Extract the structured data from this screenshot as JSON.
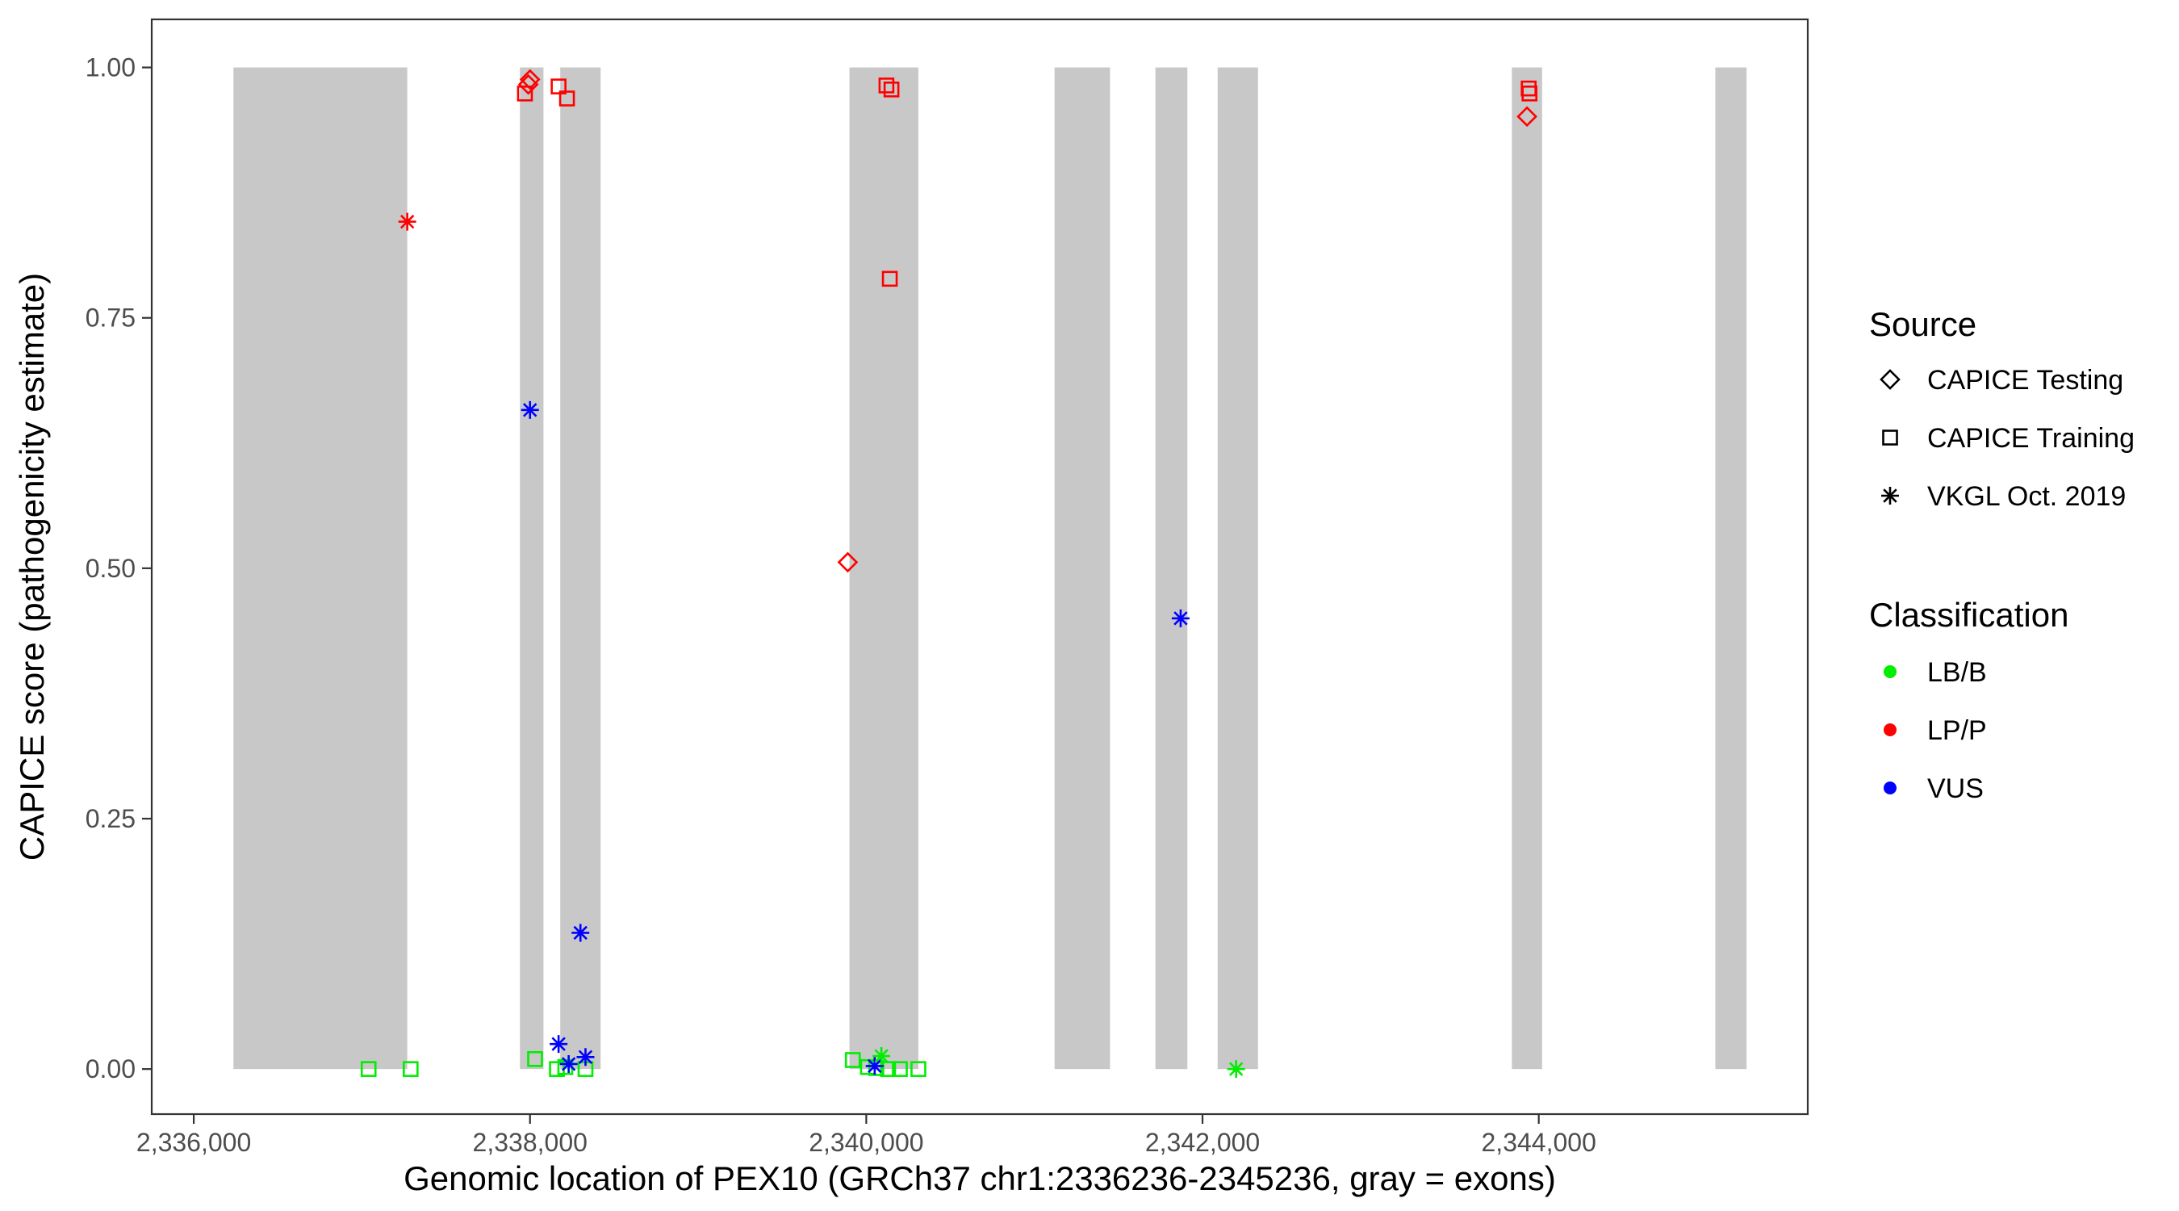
{
  "chart_data": {
    "type": "scatter",
    "xlabel": "Genomic location of PEX10 (GRCh37 chr1:2336236-2345236, gray = exons)",
    "ylabel": "CAPICE score (pathogenicity estimate)",
    "xlim": [
      2335750,
      2345600
    ],
    "ylim": [
      -0.045,
      1.048
    ],
    "x_ticks": [
      2336000,
      2338000,
      2340000,
      2342000,
      2344000
    ],
    "x_tick_labels": [
      "2,336,000",
      "2,338,000",
      "2,340,000",
      "2,342,000",
      "2,344,000"
    ],
    "y_ticks": [
      0,
      0.25,
      0.5,
      0.75,
      1
    ],
    "y_tick_labels": [
      "0.00",
      "0.25",
      "0.50",
      "0.75",
      "1.00"
    ],
    "grid": false,
    "exons": [
      [
        2336236,
        2337270
      ],
      [
        2337940,
        2338080
      ],
      [
        2338180,
        2338420
      ],
      [
        2339900,
        2340310
      ],
      [
        2341120,
        2341450
      ],
      [
        2341720,
        2341910
      ],
      [
        2342090,
        2342330
      ],
      [
        2343840,
        2344020
      ],
      [
        2345050,
        2345236
      ]
    ],
    "legends": [
      {
        "title": "Source",
        "position": "right",
        "entries": [
          {
            "label": "CAPICE Testing",
            "shape": "diamond"
          },
          {
            "label": "CAPICE Training",
            "shape": "square"
          },
          {
            "label": "VKGL Oct. 2019",
            "shape": "asterisk"
          }
        ]
      },
      {
        "title": "Classification",
        "position": "right",
        "entries": [
          {
            "label": "LB/B",
            "color": "#00ee00"
          },
          {
            "label": "LP/P",
            "color": "#ff0000"
          },
          {
            "label": "VUS",
            "color": "#0000ff"
          }
        ]
      }
    ],
    "colors": {
      "LB/B": "#00ee00",
      "LP/P": "#ff0000",
      "VUS": "#0000ff",
      "exon": "#c8c8c8"
    },
    "points": [
      {
        "x": 2338000,
        "y": 0.988,
        "source": "CAPICE Testing",
        "class": "LP/P"
      },
      {
        "x": 2337990,
        "y": 0.983,
        "source": "CAPICE Testing",
        "class": "LP/P"
      },
      {
        "x": 2339890,
        "y": 0.506,
        "source": "CAPICE Testing",
        "class": "LP/P"
      },
      {
        "x": 2343930,
        "y": 0.951,
        "source": "CAPICE Testing",
        "class": "LP/P"
      },
      {
        "x": 2337970,
        "y": 0.974,
        "source": "CAPICE Training",
        "class": "LP/P"
      },
      {
        "x": 2338170,
        "y": 0.981,
        "source": "CAPICE Training",
        "class": "LP/P"
      },
      {
        "x": 2338220,
        "y": 0.969,
        "source": "CAPICE Training",
        "class": "LP/P"
      },
      {
        "x": 2340120,
        "y": 0.982,
        "source": "CAPICE Training",
        "class": "LP/P"
      },
      {
        "x": 2340150,
        "y": 0.978,
        "source": "CAPICE Training",
        "class": "LP/P"
      },
      {
        "x": 2340140,
        "y": 0.789,
        "source": "CAPICE Training",
        "class": "LP/P"
      },
      {
        "x": 2343940,
        "y": 0.979,
        "source": "CAPICE Training",
        "class": "LP/P"
      },
      {
        "x": 2343945,
        "y": 0.974,
        "source": "CAPICE Training",
        "class": "LP/P"
      },
      {
        "x": 2337040,
        "y": 0.0,
        "source": "CAPICE Training",
        "class": "LB/B"
      },
      {
        "x": 2337290,
        "y": 0.0,
        "source": "CAPICE Training",
        "class": "LB/B"
      },
      {
        "x": 2338030,
        "y": 0.01,
        "source": "CAPICE Training",
        "class": "LB/B"
      },
      {
        "x": 2338160,
        "y": 0.0,
        "source": "CAPICE Training",
        "class": "LB/B"
      },
      {
        "x": 2338210,
        "y": 0.002,
        "source": "CAPICE Training",
        "class": "LB/B"
      },
      {
        "x": 2338330,
        "y": 0.0,
        "source": "CAPICE Training",
        "class": "LB/B"
      },
      {
        "x": 2339920,
        "y": 0.009,
        "source": "CAPICE Training",
        "class": "LB/B"
      },
      {
        "x": 2340010,
        "y": 0.002,
        "source": "CAPICE Training",
        "class": "LB/B"
      },
      {
        "x": 2340060,
        "y": 0.001,
        "source": "CAPICE Training",
        "class": "LB/B"
      },
      {
        "x": 2340130,
        "y": 0.0,
        "source": "CAPICE Training",
        "class": "LB/B"
      },
      {
        "x": 2340200,
        "y": 0.0,
        "source": "CAPICE Training",
        "class": "LB/B"
      },
      {
        "x": 2340310,
        "y": 0.0,
        "source": "CAPICE Training",
        "class": "LB/B"
      },
      {
        "x": 2337270,
        "y": 0.846,
        "source": "VKGL Oct. 2019",
        "class": "LP/P"
      },
      {
        "x": 2338000,
        "y": 0.658,
        "source": "VKGL Oct. 2019",
        "class": "VUS"
      },
      {
        "x": 2338300,
        "y": 0.136,
        "source": "VKGL Oct. 2019",
        "class": "VUS"
      },
      {
        "x": 2338170,
        "y": 0.025,
        "source": "VKGL Oct. 2019",
        "class": "VUS"
      },
      {
        "x": 2338230,
        "y": 0.005,
        "source": "VKGL Oct. 2019",
        "class": "VUS"
      },
      {
        "x": 2338330,
        "y": 0.012,
        "source": "VKGL Oct. 2019",
        "class": "VUS"
      },
      {
        "x": 2340050,
        "y": 0.003,
        "source": "VKGL Oct. 2019",
        "class": "VUS"
      },
      {
        "x": 2340090,
        "y": 0.013,
        "source": "VKGL Oct. 2019",
        "class": "LB/B"
      },
      {
        "x": 2341870,
        "y": 0.45,
        "source": "VKGL Oct. 2019",
        "class": "VUS"
      },
      {
        "x": 2342200,
        "y": 0.0,
        "source": "VKGL Oct. 2019",
        "class": "LB/B"
      }
    ]
  }
}
